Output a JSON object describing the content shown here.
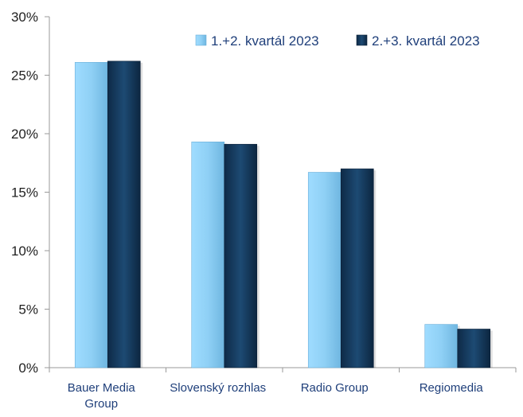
{
  "chart_data": {
    "type": "bar",
    "categories": [
      [
        "Bauer Media",
        "Group"
      ],
      [
        "Slovenský rozhlas"
      ],
      [
        "Radio Group"
      ],
      [
        "Regiomedia"
      ]
    ],
    "series": [
      {
        "name": "1.+2. kvartál 2023",
        "values": [
          26.1,
          19.3,
          16.7,
          3.7
        ],
        "color": "#8fd0f5"
      },
      {
        "name": "2.+3. kvartál 2023",
        "values": [
          26.2,
          19.1,
          17.0,
          3.3
        ],
        "color": "#163a5c"
      }
    ],
    "y_ticks": [
      "0%",
      "5%",
      "10%",
      "15%",
      "20%",
      "25%",
      "30%"
    ],
    "ylim": [
      0,
      30
    ],
    "legend_position": "top-right",
    "grid": false
  }
}
